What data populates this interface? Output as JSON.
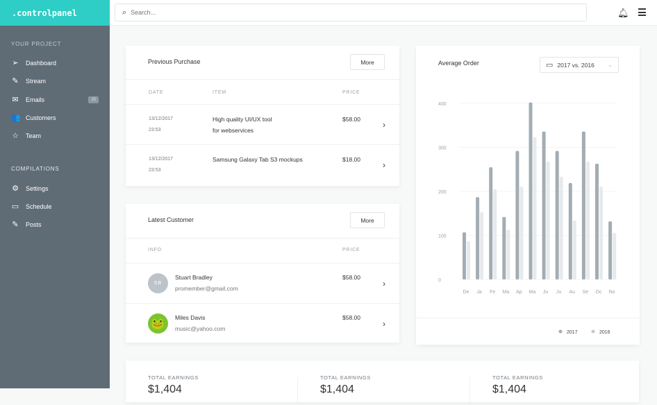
{
  "sidebar": {
    "brand": ".controlpanel",
    "section1": "YOUR PROJECT",
    "items1": [
      {
        "label": "Dashboard",
        "icon": "paper-plane-icon"
      },
      {
        "label": "Stream",
        "icon": "pencil-icon"
      },
      {
        "label": "Emails",
        "icon": "mail-icon",
        "badge": "15"
      },
      {
        "label": "Customers",
        "icon": "users-icon"
      },
      {
        "label": "Team",
        "icon": "star-icon"
      }
    ],
    "section2": "COMPILATIONS",
    "items2": [
      {
        "label": "Settings",
        "icon": "gear-icon"
      },
      {
        "label": "Schedule",
        "icon": "calendar-icon"
      },
      {
        "label": "Posts",
        "icon": "pencil-icon"
      }
    ]
  },
  "topbar": {
    "search_placeholder": "Search..."
  },
  "purchase": {
    "title": "Previous Purchase",
    "more": "More",
    "columns": [
      "DATE",
      "ITEM",
      "PRICE"
    ],
    "rows": [
      {
        "date": "13/12/2017",
        "time": "23:53",
        "item1": "High quality UI/UX tool",
        "item2": "for webservices",
        "price": "$58.00"
      },
      {
        "date": "13/12/2017",
        "time": "23:53",
        "item1": "Samsung Galaxy Tab S3 mockups",
        "item2": "",
        "price": "$18.00"
      }
    ]
  },
  "customer": {
    "title": "Latest Customer",
    "more": "More",
    "columns": [
      "INFO",
      "PRICE"
    ],
    "rows": [
      {
        "initials": "SB",
        "name": "Stuart Bradley",
        "email": "promember@gmail.com",
        "price": "$58.00"
      },
      {
        "initials": "🐸",
        "name": "Miles Davis",
        "email": "music@yahoo.com",
        "price": "$58.00"
      }
    ]
  },
  "chart_card": {
    "title": "Average Order",
    "select": "2017 vs. 2016"
  },
  "chart_data": {
    "type": "bar",
    "categories": [
      "De",
      "Ja",
      "Fe",
      "Ma",
      "Ap",
      "Ma",
      "Ju",
      "Ju",
      "Au",
      "Se",
      "Oc",
      "No"
    ],
    "series": [
      {
        "name": "2017",
        "color": "#a3adb3",
        "values": [
          107,
          187,
          255,
          142,
          292,
          402,
          336,
          292,
          219,
          336,
          263,
          132
        ]
      },
      {
        "name": "2016",
        "color": "#e6eaec",
        "values": [
          87,
          153,
          205,
          113,
          211,
          323,
          268,
          233,
          134,
          268,
          211,
          106
        ]
      }
    ],
    "yticks": [
      0,
      100,
      200,
      300,
      400
    ],
    "ylim": [
      0,
      400
    ],
    "grid": true,
    "legend": "bottom-right"
  },
  "totals": [
    {
      "label": "TOTAL EARNINGS",
      "value": "$1,404"
    },
    {
      "label": "TOTAL EARNINGS",
      "value": "$1,404"
    },
    {
      "label": "TOTAL EARNINGS",
      "value": "$1,404"
    }
  ]
}
